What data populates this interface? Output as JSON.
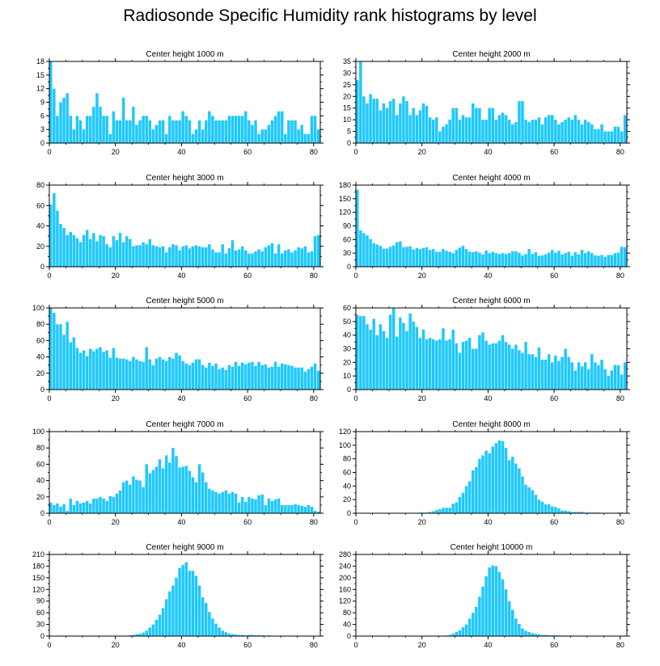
{
  "title": "Radiosonde Specific Humidity rank histograms by level",
  "bar_color": "#1ec8ff",
  "chart_data": [
    {
      "type": "bar",
      "title": "Center height 1000 m",
      "xlim": [
        0,
        82
      ],
      "ylim": [
        0,
        18
      ],
      "xticks": [
        0,
        20,
        40,
        60,
        80
      ],
      "yticks": [
        0,
        3,
        6,
        9,
        12,
        15,
        18
      ],
      "values": [
        18,
        12,
        6,
        9,
        10,
        11,
        6,
        3,
        6,
        5,
        3,
        6,
        6,
        8,
        11,
        8,
        6,
        6,
        2,
        7,
        5,
        5,
        10,
        5,
        5,
        8,
        4,
        5,
        6,
        6,
        5,
        3,
        4,
        5,
        5,
        2,
        6,
        5,
        5,
        5,
        7,
        6,
        5,
        2,
        3,
        5,
        3,
        5,
        7,
        6,
        5,
        5,
        5,
        5,
        6,
        6,
        6,
        6,
        6,
        7,
        5,
        4,
        5,
        2,
        3,
        3,
        4,
        5,
        6,
        7,
        7,
        2,
        5,
        5,
        5,
        3,
        4,
        2,
        2,
        6,
        6,
        3
      ]
    },
    {
      "type": "bar",
      "title": "Center height 2000 m",
      "xlim": [
        0,
        82
      ],
      "ylim": [
        0,
        35
      ],
      "xticks": [
        0,
        20,
        40,
        60,
        80
      ],
      "yticks": [
        0,
        5,
        10,
        15,
        20,
        25,
        30,
        35
      ],
      "values": [
        27,
        35,
        20,
        17,
        21,
        19,
        19,
        14,
        17,
        15,
        18,
        19,
        12,
        17,
        20,
        18,
        12,
        15,
        12,
        14,
        17,
        16,
        11,
        10,
        11,
        5,
        7,
        8,
        10,
        15,
        15,
        10,
        12,
        11,
        11,
        17,
        15,
        15,
        10,
        10,
        15,
        15,
        10,
        12,
        13,
        12,
        10,
        8,
        9,
        18,
        18,
        10,
        9,
        10,
        10,
        11,
        8,
        11,
        12,
        12,
        10,
        8,
        9,
        10,
        11,
        10,
        12,
        10,
        8,
        10,
        9,
        8,
        6,
        6,
        8,
        5,
        5,
        5,
        7,
        7,
        5,
        12
      ]
    },
    {
      "type": "bar",
      "title": "Center height 3000 m",
      "xlim": [
        0,
        82
      ],
      "ylim": [
        0,
        80
      ],
      "xticks": [
        0,
        20,
        40,
        60,
        80
      ],
      "yticks": [
        0,
        20,
        40,
        60,
        80
      ],
      "values": [
        61,
        72,
        55,
        42,
        38,
        31,
        34,
        31,
        28,
        24,
        31,
        36,
        27,
        33,
        25,
        31,
        30,
        22,
        19,
        30,
        26,
        33,
        24,
        30,
        27,
        20,
        21,
        21,
        24,
        22,
        27,
        21,
        20,
        19,
        20,
        14,
        19,
        22,
        21,
        16,
        20,
        21,
        18,
        20,
        21,
        20,
        19,
        19,
        22,
        17,
        14,
        14,
        22,
        13,
        18,
        26,
        16,
        17,
        20,
        16,
        13,
        13,
        15,
        17,
        15,
        19,
        21,
        23,
        13,
        22,
        13,
        16,
        17,
        14,
        16,
        19,
        18,
        20,
        14,
        15,
        30,
        31
      ]
    },
    {
      "type": "bar",
      "title": "Center height 4000 m",
      "xlim": [
        0,
        82
      ],
      "ylim": [
        0,
        180
      ],
      "xticks": [
        0,
        20,
        40,
        60,
        80
      ],
      "yticks": [
        0,
        30,
        60,
        90,
        120,
        150,
        180
      ],
      "values": [
        170,
        80,
        74,
        69,
        61,
        52,
        49,
        46,
        40,
        40,
        44,
        47,
        54,
        56,
        43,
        44,
        45,
        38,
        41,
        39,
        41,
        43,
        37,
        39,
        33,
        33,
        39,
        35,
        33,
        30,
        37,
        42,
        46,
        39,
        33,
        32,
        34,
        31,
        27,
        36,
        30,
        33,
        30,
        28,
        30,
        28,
        30,
        34,
        34,
        31,
        25,
        28,
        39,
        28,
        32,
        24,
        25,
        27,
        31,
        37,
        31,
        35,
        27,
        30,
        33,
        24,
        32,
        27,
        37,
        30,
        34,
        30,
        25,
        24,
        26,
        22,
        26,
        26,
        30,
        31,
        44,
        43
      ]
    },
    {
      "type": "bar",
      "title": "Center height 5000 m",
      "xlim": [
        0,
        82
      ],
      "ylim": [
        0,
        100
      ],
      "xticks": [
        0,
        20,
        40,
        60,
        80
      ],
      "yticks": [
        0,
        20,
        40,
        60,
        80,
        100
      ],
      "values": [
        101,
        94,
        80,
        80,
        67,
        83,
        58,
        64,
        51,
        45,
        48,
        41,
        50,
        47,
        50,
        52,
        46,
        48,
        39,
        51,
        39,
        38,
        38,
        37,
        35,
        40,
        37,
        35,
        34,
        52,
        37,
        30,
        38,
        40,
        37,
        35,
        40,
        38,
        45,
        42,
        35,
        32,
        30,
        33,
        37,
        37,
        30,
        27,
        33,
        29,
        32,
        25,
        27,
        24,
        30,
        28,
        34,
        29,
        33,
        31,
        33,
        34,
        29,
        34,
        30,
        31,
        27,
        28,
        34,
        28,
        32,
        31,
        30,
        29,
        27,
        27,
        27,
        22,
        25,
        28,
        32,
        23
      ]
    },
    {
      "type": "bar",
      "title": "Center height 6000 m",
      "xlim": [
        0,
        82
      ],
      "ylim": [
        0,
        60
      ],
      "xticks": [
        0,
        20,
        40,
        60,
        80
      ],
      "yticks": [
        0,
        10,
        20,
        30,
        40,
        50,
        60
      ],
      "values": [
        55,
        54,
        54,
        48,
        44,
        52,
        40,
        48,
        43,
        38,
        55,
        60,
        39,
        53,
        49,
        43,
        56,
        50,
        46,
        38,
        44,
        37,
        38,
        37,
        36,
        37,
        45,
        36,
        37,
        44,
        34,
        27,
        35,
        36,
        38,
        30,
        30,
        40,
        42,
        36,
        33,
        34,
        34,
        36,
        40,
        35,
        33,
        30,
        33,
        29,
        27,
        35,
        26,
        26,
        24,
        31,
        22,
        22,
        26,
        20,
        25,
        21,
        24,
        30,
        24,
        20,
        14,
        20,
        17,
        20,
        15,
        26,
        20,
        18,
        22,
        15,
        10,
        14,
        18,
        18,
        11,
        20
      ]
    },
    {
      "type": "bar",
      "title": "Center height 7000 m",
      "xlim": [
        0,
        82
      ],
      "ylim": [
        0,
        100
      ],
      "xticks": [
        0,
        20,
        40,
        60,
        80
      ],
      "yticks": [
        0,
        20,
        40,
        60,
        80,
        100
      ],
      "values": [
        13,
        10,
        12,
        8,
        11,
        3,
        18,
        10,
        15,
        12,
        13,
        15,
        12,
        18,
        18,
        20,
        18,
        15,
        21,
        20,
        24,
        28,
        38,
        40,
        35,
        45,
        41,
        40,
        32,
        60,
        49,
        53,
        57,
        66,
        55,
        71,
        62,
        80,
        70,
        56,
        57,
        58,
        52,
        44,
        38,
        60,
        50,
        38,
        30,
        28,
        26,
        24,
        26,
        28,
        24,
        26,
        24,
        13,
        20,
        14,
        20,
        18,
        17,
        22,
        23,
        10,
        18,
        15,
        17,
        18,
        10,
        10,
        10,
        10,
        11,
        10,
        9,
        8,
        10,
        8,
        3,
        2
      ]
    },
    {
      "type": "bar",
      "title": "Center height 8000 m",
      "xlim": [
        0,
        82
      ],
      "ylim": [
        0,
        120
      ],
      "xticks": [
        0,
        20,
        40,
        60,
        80
      ],
      "yticks": [
        0,
        20,
        40,
        60,
        80,
        100,
        120
      ],
      "values": [
        0,
        0,
        0,
        0,
        0,
        0,
        0,
        0,
        0,
        0,
        0,
        0,
        0,
        0,
        0,
        0,
        0,
        0,
        0,
        1,
        1,
        1,
        2,
        3,
        5,
        6,
        8,
        8,
        8,
        14,
        16,
        24,
        30,
        40,
        47,
        63,
        68,
        80,
        85,
        92,
        88,
        98,
        103,
        107,
        106,
        96,
        78,
        83,
        73,
        66,
        54,
        42,
        38,
        34,
        27,
        20,
        17,
        13,
        13,
        10,
        9,
        7,
        4,
        4,
        3,
        2,
        2,
        2,
        2,
        1,
        1,
        1,
        1,
        1,
        0,
        0,
        0,
        0,
        0,
        1,
        1,
        0
      ]
    },
    {
      "type": "bar",
      "title": "Center height 9000 m",
      "xlim": [
        0,
        82
      ],
      "ylim": [
        0,
        210
      ],
      "xticks": [
        0,
        20,
        40,
        60,
        80
      ],
      "yticks": [
        0,
        30,
        60,
        90,
        120,
        150,
        180,
        210
      ],
      "values": [
        0,
        0,
        0,
        0,
        0,
        0,
        0,
        0,
        0,
        0,
        0,
        0,
        0,
        0,
        0,
        0,
        0,
        0,
        0,
        0,
        0,
        0,
        0,
        1,
        2,
        3,
        5,
        6,
        9,
        14,
        22,
        30,
        42,
        55,
        72,
        95,
        115,
        130,
        150,
        175,
        183,
        190,
        168,
        168,
        155,
        130,
        100,
        85,
        62,
        45,
        32,
        22,
        14,
        10,
        7,
        5,
        4,
        3,
        3,
        2,
        3,
        3,
        2,
        2,
        2,
        1,
        2,
        1,
        1,
        1,
        0,
        0,
        1,
        0,
        0,
        0,
        0,
        0,
        0,
        0,
        0,
        0
      ]
    },
    {
      "type": "bar",
      "title": "Center height 10000 m",
      "xlim": [
        0,
        82
      ],
      "ylim": [
        0,
        280
      ],
      "xticks": [
        0,
        20,
        40,
        60,
        80
      ],
      "yticks": [
        0,
        40,
        80,
        120,
        160,
        200,
        240,
        280
      ],
      "values": [
        0,
        0,
        0,
        0,
        0,
        0,
        0,
        0,
        0,
        0,
        0,
        0,
        0,
        0,
        0,
        0,
        0,
        0,
        0,
        0,
        0,
        0,
        0,
        0,
        0,
        1,
        1,
        2,
        4,
        8,
        14,
        20,
        30,
        40,
        60,
        80,
        100,
        135,
        170,
        205,
        235,
        242,
        240,
        220,
        195,
        160,
        120,
        90,
        60,
        42,
        26,
        18,
        14,
        10,
        8,
        6,
        4,
        4,
        3,
        3,
        3,
        2,
        2,
        2,
        2,
        1,
        1,
        1,
        1,
        1,
        0,
        0,
        0,
        0,
        0,
        0,
        0,
        0,
        0,
        0,
        0,
        0
      ]
    }
  ]
}
